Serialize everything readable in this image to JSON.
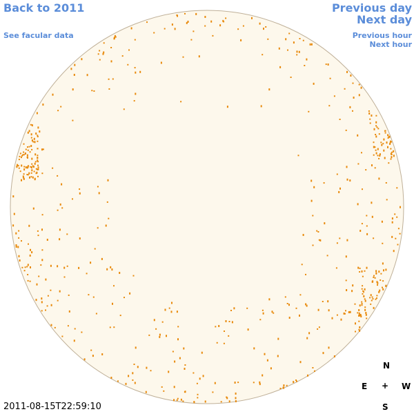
{
  "nav": {
    "back": "Back to 2011",
    "facular": "See facular data",
    "previous_day": "Previous day",
    "next_day": "Next day",
    "previous_hour": "Previous hour",
    "next_hour": "Next hour"
  },
  "timestamp": "2011-08-15T22:59:10",
  "compass": {
    "north": "N",
    "east": "E",
    "center": "+",
    "west": "W",
    "south": "S"
  }
}
